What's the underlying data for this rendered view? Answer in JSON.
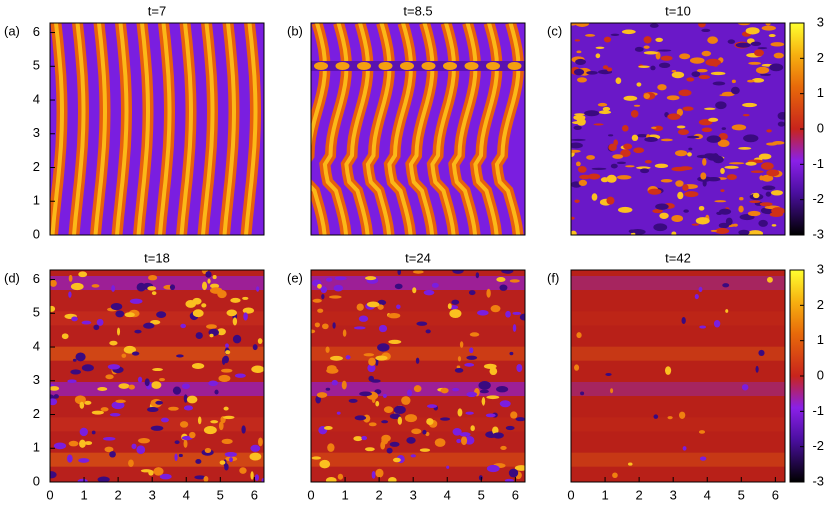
{
  "chart_data": [
    {
      "type": "heatmap",
      "title": "t=7",
      "label": "(a)",
      "xlim": [
        0,
        6.283
      ],
      "ylim": [
        0,
        6.283
      ],
      "yticks": [
        0,
        1,
        2,
        3,
        4,
        5,
        6
      ]
    },
    {
      "type": "heatmap",
      "title": "t=8.5",
      "label": "(b)",
      "xlim": [
        0,
        6.283
      ],
      "ylim": [
        0,
        6.283
      ]
    },
    {
      "type": "heatmap",
      "title": "t=10",
      "label": "(c)",
      "xlim": [
        0,
        6.283
      ],
      "ylim": [
        0,
        6.283
      ],
      "colorbar": {
        "lim": [
          -3,
          3
        ],
        "ticks": [
          3,
          2,
          1,
          0,
          -1,
          -2,
          -3
        ]
      }
    },
    {
      "type": "heatmap",
      "title": "t=18",
      "label": "(d)",
      "xlim": [
        0,
        6.283
      ],
      "ylim": [
        0,
        6.283
      ],
      "xticks": [
        0,
        1,
        2,
        3,
        4,
        5,
        6
      ],
      "yticks": [
        0,
        1,
        2,
        3,
        4,
        5,
        6
      ]
    },
    {
      "type": "heatmap",
      "title": "t=24",
      "label": "(e)",
      "xlim": [
        0,
        6.283
      ],
      "ylim": [
        0,
        6.283
      ],
      "xticks": [
        0,
        1,
        2,
        3,
        4,
        5,
        6
      ]
    },
    {
      "type": "heatmap",
      "title": "t=42",
      "label": "(f)",
      "xlim": [
        0,
        6.283
      ],
      "ylim": [
        0,
        6.283
      ],
      "xticks": [
        0,
        1,
        2,
        3,
        4,
        5,
        6
      ],
      "colorbar": {
        "lim": [
          -3,
          3
        ],
        "ticks": [
          3,
          2,
          1,
          0,
          -1,
          -2,
          -3
        ]
      }
    }
  ]
}
